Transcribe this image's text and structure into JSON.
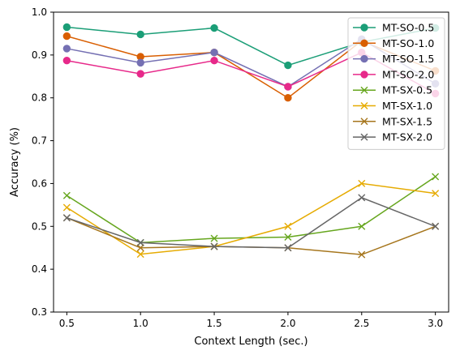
{
  "chart_data": {
    "type": "line",
    "title": "",
    "xlabel": "Context Length (sec.)",
    "ylabel": "Accuracy (%)",
    "xlim": [
      0.41,
      3.09
    ],
    "ylim": [
      0.3,
      1.0
    ],
    "x": [
      0.5,
      1.0,
      1.5,
      2.0,
      2.5,
      3.0
    ],
    "xticks": [
      "0.5",
      "1.0",
      "1.5",
      "2.0",
      "2.5",
      "3.0"
    ],
    "yticks": [
      "0.3",
      "0.4",
      "0.5",
      "0.6",
      "0.7",
      "0.8",
      "0.9",
      "1.0"
    ],
    "grid": false,
    "legend_position": "top-right",
    "series": [
      {
        "name": "MT-SO-0.5",
        "color": "#1b9e77",
        "marker": "circle",
        "values": [
          0.965,
          0.948,
          0.963,
          0.876,
          0.93,
          0.963
        ]
      },
      {
        "name": "MT-SO-1.0",
        "color": "#d95f02",
        "marker": "circle",
        "values": [
          0.944,
          0.896,
          0.906,
          0.8,
          0.933,
          0.863
        ]
      },
      {
        "name": "MT-SO-1.5",
        "color": "#7570b3",
        "marker": "circle",
        "values": [
          0.915,
          0.882,
          0.906,
          0.826,
          0.937,
          0.833
        ]
      },
      {
        "name": "MT-SO-2.0",
        "color": "#e7298a",
        "marker": "circle",
        "values": [
          0.887,
          0.856,
          0.887,
          0.826,
          0.906,
          0.81
        ]
      },
      {
        "name": "MT-SX-0.5",
        "color": "#66a61e",
        "marker": "x",
        "values": [
          0.572,
          0.462,
          0.472,
          0.475,
          0.5,
          0.616
        ]
      },
      {
        "name": "MT-SX-1.0",
        "color": "#e6ab02",
        "marker": "x",
        "values": [
          0.544,
          0.435,
          0.453,
          0.5,
          0.6,
          0.577
        ]
      },
      {
        "name": "MT-SX-1.5",
        "color": "#a6761d",
        "marker": "x",
        "values": [
          0.52,
          0.45,
          0.453,
          0.45,
          0.434,
          0.5
        ]
      },
      {
        "name": "MT-SX-2.0",
        "color": "#666666",
        "marker": "x",
        "values": [
          0.52,
          0.462,
          0.453,
          0.45,
          0.567,
          0.5
        ]
      }
    ]
  }
}
